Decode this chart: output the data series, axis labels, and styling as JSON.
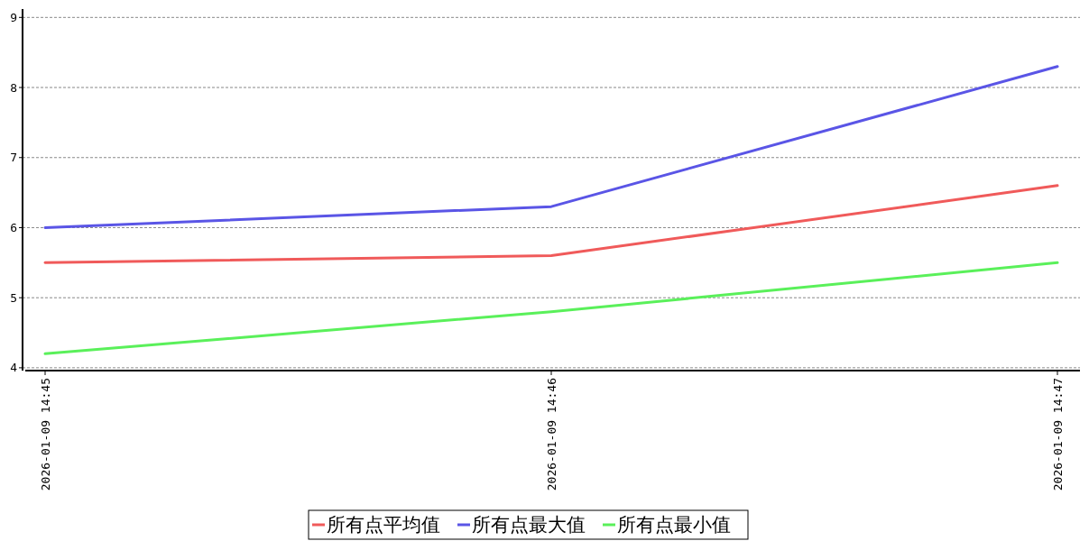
{
  "chart_data": {
    "type": "line",
    "categories": [
      "2026-01-09 14:45",
      "2026-01-09 14:46",
      "2026-01-09 14:47"
    ],
    "series": [
      {
        "name": "所有点平均值",
        "color": "#f05a5a",
        "values": [
          5.5,
          5.6,
          6.6
        ]
      },
      {
        "name": "所有点最大值",
        "color": "#5a55e6",
        "values": [
          6.0,
          6.3,
          8.3
        ]
      },
      {
        "name": "所有点最小值",
        "color": "#5af05a",
        "values": [
          4.2,
          4.8,
          5.5
        ]
      }
    ],
    "ylim": [
      3.96,
      9.12
    ],
    "yticks": [
      4,
      5,
      6,
      7,
      8,
      9
    ],
    "grid": "y",
    "legend": "bottom",
    "marker": "none",
    "line_style": "solid"
  }
}
